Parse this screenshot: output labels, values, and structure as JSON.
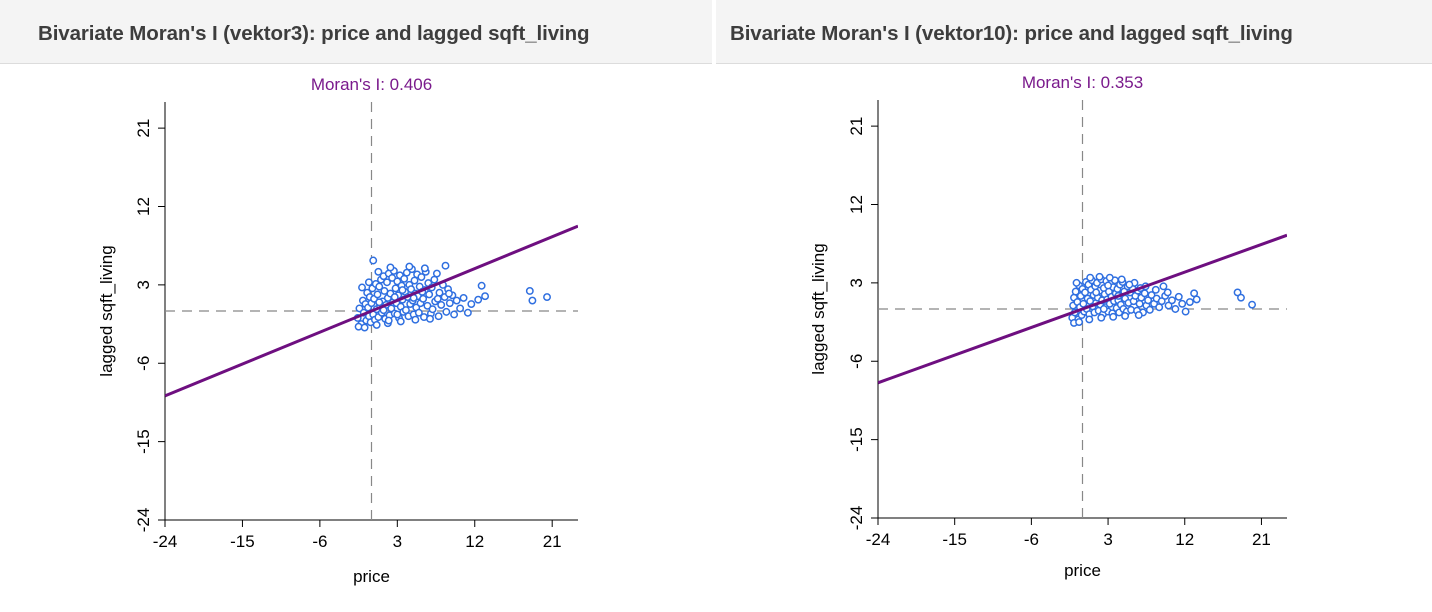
{
  "windows": [
    {
      "title": "Bivariate Moran's I (vektor3): price and lagged sqft_living"
    },
    {
      "title": "Bivariate Moran's I (vektor10): price and lagged sqft_living"
    }
  ],
  "chart_data": [
    {
      "type": "scatter",
      "title": "Moran's I: 0.406",
      "xlabel": "price",
      "ylabel": "lagged sqft_living",
      "xlim": [
        -24,
        24
      ],
      "ylim": [
        -24,
        24
      ],
      "x_ticks": [
        -24,
        -15,
        -6,
        3,
        12,
        21
      ],
      "y_ticks": [
        -24,
        -15,
        -6,
        3,
        12,
        21
      ],
      "x_tick_labels": [
        "-24",
        "-15",
        "-6",
        "3",
        "12",
        "21"
      ],
      "y_tick_labels": [
        "-24",
        "-15",
        "-6",
        "3",
        "12",
        "21"
      ],
      "regression": {
        "slope": 0.406,
        "intercept": 0
      },
      "reference_lines": {
        "x": 0,
        "y": 0
      },
      "grid": false,
      "colors": {
        "title": "#7a1a8c",
        "line": "#6e0f80",
        "points": "#2f6fe0",
        "reference": "#888888"
      },
      "points": [
        [
          -1.6,
          -0.8
        ],
        [
          -1.4,
          0.3
        ],
        [
          -1.2,
          -1.5
        ],
        [
          -1.0,
          1.2
        ],
        [
          -0.9,
          -0.2
        ],
        [
          -0.7,
          0.8
        ],
        [
          -0.6,
          -1.1
        ],
        [
          -0.5,
          2.1
        ],
        [
          -0.4,
          0.4
        ],
        [
          -0.3,
          -0.6
        ],
        [
          -0.2,
          1.6
        ],
        [
          -0.1,
          -1.3
        ],
        [
          0.0,
          0.9
        ],
        [
          0.1,
          2.6
        ],
        [
          0.2,
          -0.4
        ],
        [
          0.3,
          1.4
        ],
        [
          0.4,
          -1.0
        ],
        [
          0.5,
          3.1
        ],
        [
          0.6,
          0.2
        ],
        [
          0.7,
          1.9
        ],
        [
          0.8,
          -0.7
        ],
        [
          0.9,
          2.8
        ],
        [
          1.0,
          0.6
        ],
        [
          1.1,
          3.6
        ],
        [
          1.2,
          -0.2
        ],
        [
          1.3,
          1.1
        ],
        [
          1.4,
          4.0
        ],
        [
          1.5,
          2.3
        ],
        [
          1.6,
          -0.9
        ],
        [
          1.7,
          0.7
        ],
        [
          1.8,
          3.3
        ],
        [
          1.9,
          1.5
        ],
        [
          2.0,
          4.3
        ],
        [
          2.1,
          -0.5
        ],
        [
          2.2,
          2.0
        ],
        [
          2.3,
          0.3
        ],
        [
          2.4,
          3.8
        ],
        [
          2.5,
          1.0
        ],
        [
          2.6,
          4.6
        ],
        [
          2.7,
          -0.3
        ],
        [
          2.8,
          2.6
        ],
        [
          2.9,
          0.9
        ],
        [
          3.0,
          3.4
        ],
        [
          3.1,
          1.8
        ],
        [
          3.2,
          -0.8
        ],
        [
          3.3,
          4.1
        ],
        [
          3.4,
          0.5
        ],
        [
          3.5,
          2.9
        ],
        [
          3.6,
          1.3
        ],
        [
          3.7,
          -0.1
        ],
        [
          3.8,
          3.7
        ],
        [
          3.9,
          2.2
        ],
        [
          4.0,
          0.1
        ],
        [
          4.1,
          4.4
        ],
        [
          4.2,
          1.6
        ],
        [
          4.3,
          -0.6
        ],
        [
          4.4,
          3.0
        ],
        [
          4.5,
          0.8
        ],
        [
          4.6,
          2.5
        ],
        [
          4.7,
          4.8
        ],
        [
          4.8,
          1.2
        ],
        [
          4.9,
          -0.4
        ],
        [
          5.0,
          3.5
        ],
        [
          5.1,
          2.0
        ],
        [
          5.2,
          0.4
        ],
        [
          5.3,
          4.2
        ],
        [
          5.4,
          1.7
        ],
        [
          5.5,
          -0.2
        ],
        [
          5.6,
          2.8
        ],
        [
          5.7,
          0.9
        ],
        [
          5.8,
          3.9
        ],
        [
          6.0,
          1.4
        ],
        [
          6.1,
          -0.7
        ],
        [
          6.2,
          2.4
        ],
        [
          6.3,
          4.5
        ],
        [
          6.5,
          0.6
        ],
        [
          6.6,
          3.2
        ],
        [
          6.7,
          1.9
        ],
        [
          6.9,
          -0.3
        ],
        [
          7.0,
          2.7
        ],
        [
          7.1,
          0.2
        ],
        [
          7.3,
          3.6
        ],
        [
          7.4,
          1.1
        ],
        [
          7.6,
          4.3
        ],
        [
          7.8,
          -0.6
        ],
        [
          7.9,
          2.1
        ],
        [
          8.1,
          0.7
        ],
        [
          8.3,
          3.0
        ],
        [
          8.5,
          1.6
        ],
        [
          8.7,
          -0.1
        ],
        [
          8.9,
          2.5
        ],
        [
          9.1,
          0.9
        ],
        [
          9.4,
          1.8
        ],
        [
          9.6,
          -0.4
        ],
        [
          9.9,
          1.2
        ],
        [
          10.3,
          0.3
        ],
        [
          10.7,
          1.5
        ],
        [
          11.2,
          -0.2
        ],
        [
          11.6,
          0.8
        ],
        [
          12.4,
          1.3
        ],
        [
          12.8,
          2.9
        ],
        [
          13.2,
          1.7
        ],
        [
          18.4,
          2.3
        ],
        [
          18.7,
          1.2
        ],
        [
          20.4,
          1.6
        ],
        [
          0.2,
          5.8
        ],
        [
          8.6,
          5.2
        ],
        [
          -1.5,
          -1.8
        ],
        [
          -0.8,
          -1.9
        ],
        [
          0.6,
          -1.6
        ],
        [
          1.9,
          -1.4
        ],
        [
          3.4,
          -1.2
        ],
        [
          5.1,
          -1.0
        ],
        [
          6.8,
          -0.9
        ],
        [
          -1.1,
          2.7
        ],
        [
          -0.3,
          3.3
        ],
        [
          0.8,
          4.5
        ],
        [
          2.2,
          5.0
        ],
        [
          4.4,
          5.1
        ],
        [
          6.2,
          4.9
        ],
        [
          2.7,
          1.6
        ],
        [
          3.6,
          2.4
        ],
        [
          1.4,
          0.1
        ],
        [
          4.9,
          1.5
        ],
        [
          0.9,
          1.0
        ],
        [
          5.9,
          2.2
        ],
        [
          2.0,
          -1.1
        ],
        [
          3.0,
          -0.4
        ],
        [
          7.7,
          1.4
        ],
        [
          9.0,
          2.0
        ]
      ]
    },
    {
      "type": "scatter",
      "title": "Moran's I: 0.353",
      "xlabel": "price",
      "ylabel": "lagged sqft_living",
      "xlim": [
        -24,
        24
      ],
      "ylim": [
        -24,
        24
      ],
      "x_ticks": [
        -24,
        -15,
        -6,
        3,
        12,
        21
      ],
      "y_ticks": [
        -24,
        -15,
        -6,
        3,
        12,
        21
      ],
      "x_tick_labels": [
        "-24",
        "-15",
        "-6",
        "3",
        "12",
        "21"
      ],
      "y_tick_labels": [
        "-24",
        "-15",
        "-6",
        "3",
        "12",
        "21"
      ],
      "regression": {
        "slope": 0.353,
        "intercept": 0
      },
      "reference_lines": {
        "x": 0,
        "y": 0
      },
      "grid": false,
      "colors": {
        "title": "#7a1a8c",
        "line": "#6e0f80",
        "points": "#2f6fe0",
        "reference": "#888888"
      },
      "points": [
        [
          -1.2,
          -1.0
        ],
        [
          -1.1,
          0.4
        ],
        [
          -1.0,
          1.3
        ],
        [
          -0.9,
          -0.4
        ],
        [
          -0.8,
          2.0
        ],
        [
          -0.6,
          0.8
        ],
        [
          -0.5,
          -1.2
        ],
        [
          -0.4,
          2.7
        ],
        [
          -0.3,
          0.2
        ],
        [
          -0.2,
          1.5
        ],
        [
          -0.1,
          -0.7
        ],
        [
          0.0,
          2.3
        ],
        [
          0.1,
          0.6
        ],
        [
          0.2,
          -0.3
        ],
        [
          0.3,
          1.9
        ],
        [
          0.4,
          3.1
        ],
        [
          0.5,
          0.0
        ],
        [
          0.6,
          1.2
        ],
        [
          0.7,
          2.8
        ],
        [
          0.8,
          -0.6
        ],
        [
          0.9,
          0.9
        ],
        [
          1.0,
          2.2
        ],
        [
          1.1,
          3.3
        ],
        [
          1.2,
          0.3
        ],
        [
          1.3,
          1.6
        ],
        [
          1.4,
          -0.4
        ],
        [
          1.5,
          2.6
        ],
        [
          1.6,
          0.7
        ],
        [
          1.7,
          3.0
        ],
        [
          1.8,
          1.3
        ],
        [
          1.9,
          -0.2
        ],
        [
          2.0,
          2.1
        ],
        [
          2.1,
          0.5
        ],
        [
          2.2,
          3.4
        ],
        [
          2.3,
          1.0
        ],
        [
          2.4,
          -0.6
        ],
        [
          2.5,
          2.4
        ],
        [
          2.6,
          1.7
        ],
        [
          2.7,
          0.2
        ],
        [
          2.8,
          3.2
        ],
        [
          2.9,
          1.1
        ],
        [
          3.0,
          -0.3
        ],
        [
          3.1,
          2.0
        ],
        [
          3.2,
          0.6
        ],
        [
          3.3,
          2.9
        ],
        [
          3.4,
          1.4
        ],
        [
          3.5,
          -0.5
        ],
        [
          3.6,
          2.5
        ],
        [
          3.7,
          0.9
        ],
        [
          3.8,
          3.3
        ],
        [
          3.9,
          1.8
        ],
        [
          4.0,
          0.1
        ],
        [
          4.1,
          2.3
        ],
        [
          4.2,
          1.0
        ],
        [
          4.3,
          -0.4
        ],
        [
          4.4,
          2.8
        ],
        [
          4.5,
          0.5
        ],
        [
          4.6,
          1.6
        ],
        [
          4.7,
          3.1
        ],
        [
          4.8,
          0.0
        ],
        [
          4.9,
          2.0
        ],
        [
          5.0,
          1.2
        ],
        [
          5.2,
          -0.3
        ],
        [
          5.3,
          2.6
        ],
        [
          5.4,
          0.7
        ],
        [
          5.6,
          1.9
        ],
        [
          5.7,
          -0.1
        ],
        [
          5.9,
          2.3
        ],
        [
          6.0,
          0.9
        ],
        [
          6.2,
          1.5
        ],
        [
          6.4,
          -0.2
        ],
        [
          6.5,
          2.1
        ],
        [
          6.7,
          0.6
        ],
        [
          6.9,
          1.3
        ],
        [
          7.1,
          -0.4
        ],
        [
          7.3,
          1.8
        ],
        [
          7.5,
          0.4
        ],
        [
          7.7,
          1.0
        ],
        [
          7.9,
          -0.1
        ],
        [
          8.1,
          1.6
        ],
        [
          8.4,
          0.6
        ],
        [
          8.7,
          1.2
        ],
        [
          9.0,
          0.2
        ],
        [
          9.3,
          0.9
        ],
        [
          9.7,
          1.5
        ],
        [
          10.1,
          0.4
        ],
        [
          10.5,
          1.0
        ],
        [
          10.9,
          0.0
        ],
        [
          11.3,
          1.4
        ],
        [
          11.7,
          0.6
        ],
        [
          12.1,
          -0.3
        ],
        [
          12.6,
          0.8
        ],
        [
          13.1,
          1.8
        ],
        [
          13.4,
          1.1
        ],
        [
          18.2,
          1.9
        ],
        [
          18.6,
          1.3
        ],
        [
          19.9,
          0.5
        ],
        [
          9.5,
          2.6
        ],
        [
          -1.0,
          -1.6
        ],
        [
          -0.4,
          -1.5
        ],
        [
          0.8,
          -1.2
        ],
        [
          2.2,
          -1.0
        ],
        [
          3.6,
          -0.9
        ],
        [
          5.0,
          -0.8
        ],
        [
          6.6,
          -0.7
        ],
        [
          -0.7,
          3.0
        ],
        [
          0.9,
          3.6
        ],
        [
          2.0,
          3.7
        ],
        [
          3.2,
          3.6
        ],
        [
          4.6,
          3.4
        ],
        [
          6.1,
          3.0
        ],
        [
          7.4,
          2.6
        ],
        [
          8.6,
          2.2
        ],
        [
          1.6,
          1.9
        ],
        [
          3.0,
          2.7
        ],
        [
          4.2,
          1.5
        ],
        [
          5.5,
          2.8
        ],
        [
          2.5,
          0.0
        ],
        [
          6.8,
          2.4
        ],
        [
          10.0,
          1.9
        ]
      ]
    }
  ]
}
